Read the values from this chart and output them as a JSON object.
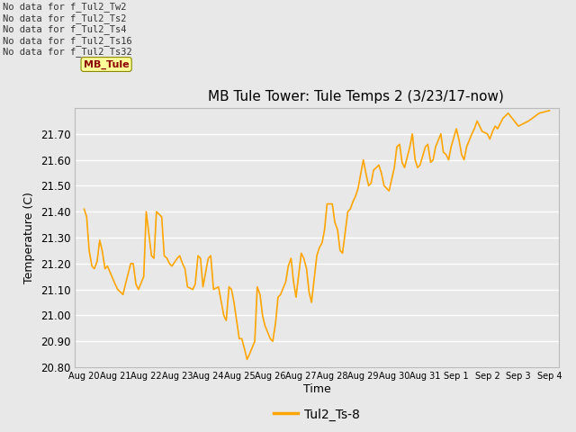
{
  "title": "MB Tule Tower: Tule Temps 2 (3/23/17-now)",
  "xlabel": "Time",
  "ylabel": "Temperature (C)",
  "line_color": "#FFA500",
  "line_width": 1.2,
  "legend_label": "Tul2_Ts-8",
  "no_data_lines": [
    "No data for f_Tul2_Tw2",
    "No data for f_Tul2_Ts2",
    "No data for f_Tul2_Ts4",
    "No data for f_Tul2_Ts16",
    "No data for f_Tul2_Ts32"
  ],
  "tooltip_text": "MB_Tule",
  "ylim": [
    20.8,
    21.8
  ],
  "yticks": [
    20.8,
    20.9,
    21.0,
    21.1,
    21.2,
    21.3,
    21.4,
    21.5,
    21.6,
    21.7
  ],
  "xtick_labels": [
    "Aug 20",
    "Aug 21",
    "Aug 22",
    "Aug 23",
    "Aug 24",
    "Aug 25",
    "Aug 26",
    "Aug 27",
    "Aug 28",
    "Aug 29",
    "Aug 30",
    "Aug 31",
    "Sep 1",
    "Sep 2",
    "Sep 3",
    "Sep 4"
  ],
  "bg_color": "#e8e8e8",
  "grid_color": "#ffffff",
  "x": [
    0,
    0.08,
    0.16,
    0.25,
    0.33,
    0.42,
    0.5,
    0.58,
    0.67,
    0.75,
    1.0,
    1.08,
    1.17,
    1.25,
    1.33,
    1.5,
    1.58,
    1.67,
    1.75,
    1.92,
    2.0,
    2.08,
    2.17,
    2.25,
    2.33,
    2.5,
    2.58,
    2.67,
    2.75,
    2.83,
    3.0,
    3.08,
    3.17,
    3.25,
    3.33,
    3.5,
    3.58,
    3.67,
    3.75,
    3.83,
    4.0,
    4.08,
    4.17,
    4.33,
    4.5,
    4.58,
    4.67,
    4.75,
    4.83,
    5.0,
    5.08,
    5.17,
    5.25,
    5.33,
    5.5,
    5.58,
    5.67,
    5.75,
    5.83,
    6.0,
    6.08,
    6.17,
    6.25,
    6.33,
    6.5,
    6.58,
    6.67,
    6.75,
    6.83,
    7.0,
    7.08,
    7.17,
    7.25,
    7.33,
    7.5,
    7.58,
    7.67,
    7.75,
    7.83,
    8.0,
    8.08,
    8.17,
    8.25,
    8.33,
    8.5,
    8.58,
    8.67,
    8.75,
    8.83,
    9.0,
    9.08,
    9.17,
    9.25,
    9.33,
    9.5,
    9.58,
    9.67,
    9.75,
    9.83,
    10.0,
    10.08,
    10.17,
    10.25,
    10.33,
    10.5,
    10.58,
    10.67,
    10.75,
    10.83,
    11.0,
    11.08,
    11.17,
    11.25,
    11.33,
    11.5,
    11.58,
    11.67,
    11.75,
    11.83,
    12.0,
    12.08,
    12.17,
    12.25,
    12.33,
    12.5,
    12.58,
    12.67,
    12.75,
    12.83,
    13.0,
    13.08,
    13.17,
    13.25,
    13.33,
    13.5,
    13.67,
    14.0,
    14.33,
    14.67,
    15.0
  ],
  "y": [
    21.41,
    21.38,
    21.25,
    21.19,
    21.18,
    21.21,
    21.29,
    21.25,
    21.18,
    21.19,
    21.12,
    21.1,
    21.09,
    21.08,
    21.12,
    21.2,
    21.2,
    21.12,
    21.1,
    21.15,
    21.4,
    21.32,
    21.23,
    21.22,
    21.4,
    21.38,
    21.23,
    21.22,
    21.2,
    21.19,
    21.22,
    21.23,
    21.2,
    21.18,
    21.11,
    21.1,
    21.12,
    21.23,
    21.22,
    21.11,
    21.22,
    21.23,
    21.1,
    21.11,
    21.0,
    20.98,
    21.11,
    21.1,
    21.05,
    20.91,
    20.91,
    20.87,
    20.83,
    20.85,
    20.9,
    21.11,
    21.08,
    21.0,
    20.96,
    20.91,
    20.9,
    20.97,
    21.07,
    21.08,
    21.13,
    21.19,
    21.22,
    21.13,
    21.07,
    21.24,
    21.22,
    21.18,
    21.09,
    21.05,
    21.23,
    21.26,
    21.28,
    21.33,
    21.43,
    21.43,
    21.36,
    21.33,
    21.25,
    21.24,
    21.4,
    21.41,
    21.44,
    21.46,
    21.49,
    21.6,
    21.55,
    21.5,
    21.51,
    21.56,
    21.58,
    21.55,
    21.5,
    21.49,
    21.48,
    21.57,
    21.65,
    21.66,
    21.59,
    21.57,
    21.65,
    21.7,
    21.6,
    21.57,
    21.58,
    21.65,
    21.66,
    21.59,
    21.6,
    21.65,
    21.7,
    21.63,
    21.62,
    21.6,
    21.65,
    21.72,
    21.68,
    21.62,
    21.6,
    21.65,
    21.7,
    21.72,
    21.75,
    21.73,
    21.71,
    21.7,
    21.68,
    21.71,
    21.73,
    21.72,
    21.76,
    21.78,
    21.73,
    21.75,
    21.78,
    21.79
  ]
}
